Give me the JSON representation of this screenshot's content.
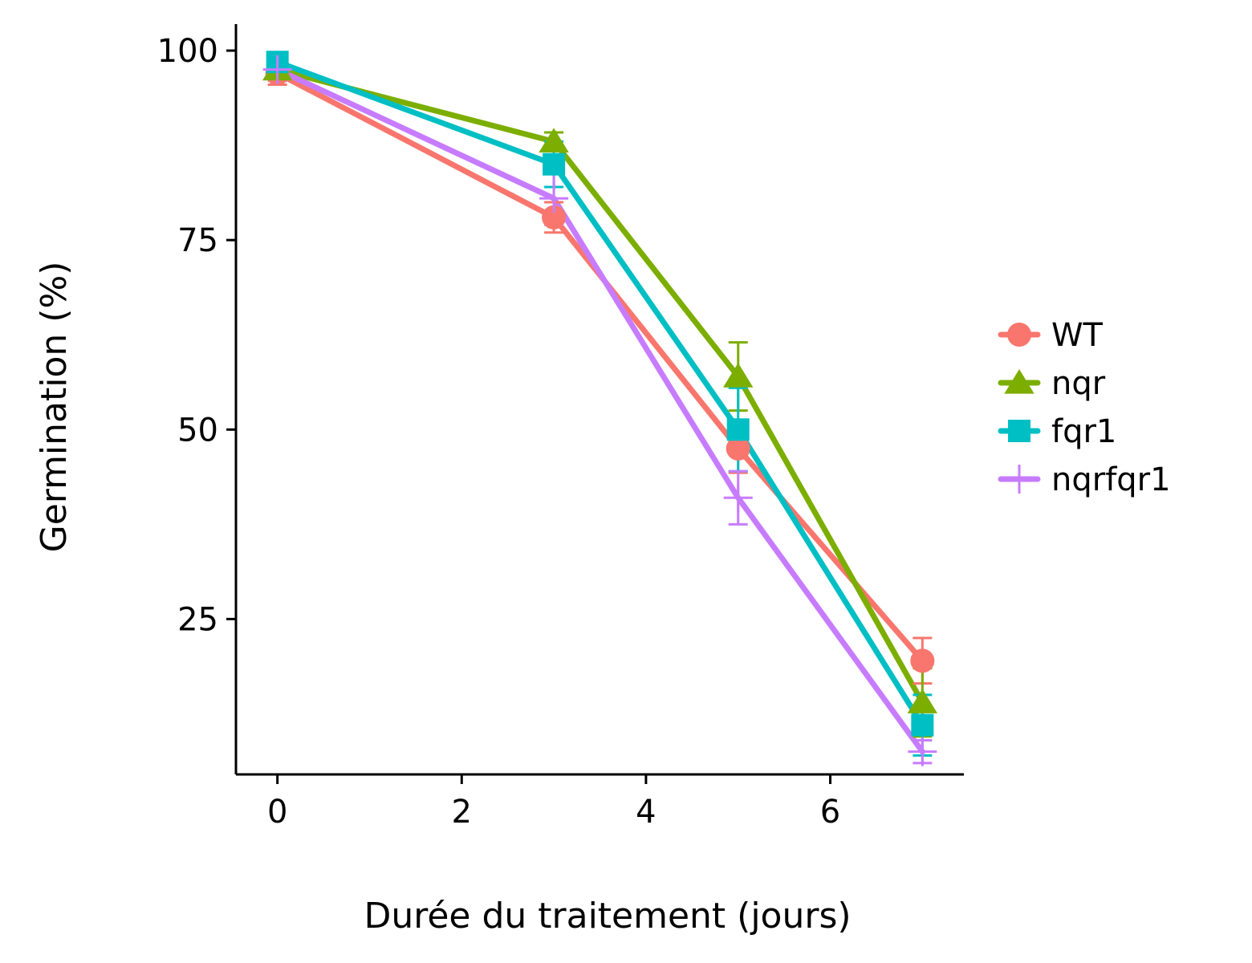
{
  "chart_data": {
    "type": "line",
    "title": "",
    "xlabel": "Durée du traitement (jours)",
    "ylabel": "Germination (%)",
    "xlim": [
      -0.45,
      7.45
    ],
    "ylim": [
      4.5,
      103.5
    ],
    "x_ticks": [
      0,
      2,
      4,
      6
    ],
    "x_tick_labels": [
      "0",
      "2",
      "4",
      "6"
    ],
    "y_ticks": [
      25,
      50,
      75,
      100
    ],
    "y_tick_labels": [
      "25",
      "50",
      "75",
      "100"
    ],
    "grid": false,
    "legend_position": "right",
    "x": [
      0,
      3,
      5,
      7
    ],
    "series": [
      {
        "name": "WT",
        "color": "#F8766D",
        "marker": "circle",
        "values": [
          97.0,
          78.0,
          47.5,
          19.5
        ],
        "errors": [
          1.5,
          2.0,
          3.2,
          3.0
        ]
      },
      {
        "name": "nqr",
        "color": "#7CAE00",
        "marker": "triangle",
        "values": [
          97.5,
          88.0,
          57.0,
          14.0
        ],
        "errors": [
          1.0,
          1.2,
          4.5,
          4.5
        ]
      },
      {
        "name": "fqr1",
        "color": "#00BFC4",
        "marker": "square",
        "values": [
          98.5,
          85.0,
          50.0,
          11.0
        ],
        "errors": [
          1.0,
          3.0,
          5.5,
          4.0
        ]
      },
      {
        "name": "nqrfqr1",
        "color": "#C77CFF",
        "marker": "plus",
        "values": [
          97.5,
          80.5,
          41.0,
          7.5
        ],
        "errors": [
          1.5,
          3.5,
          3.5,
          1.5
        ]
      }
    ]
  }
}
